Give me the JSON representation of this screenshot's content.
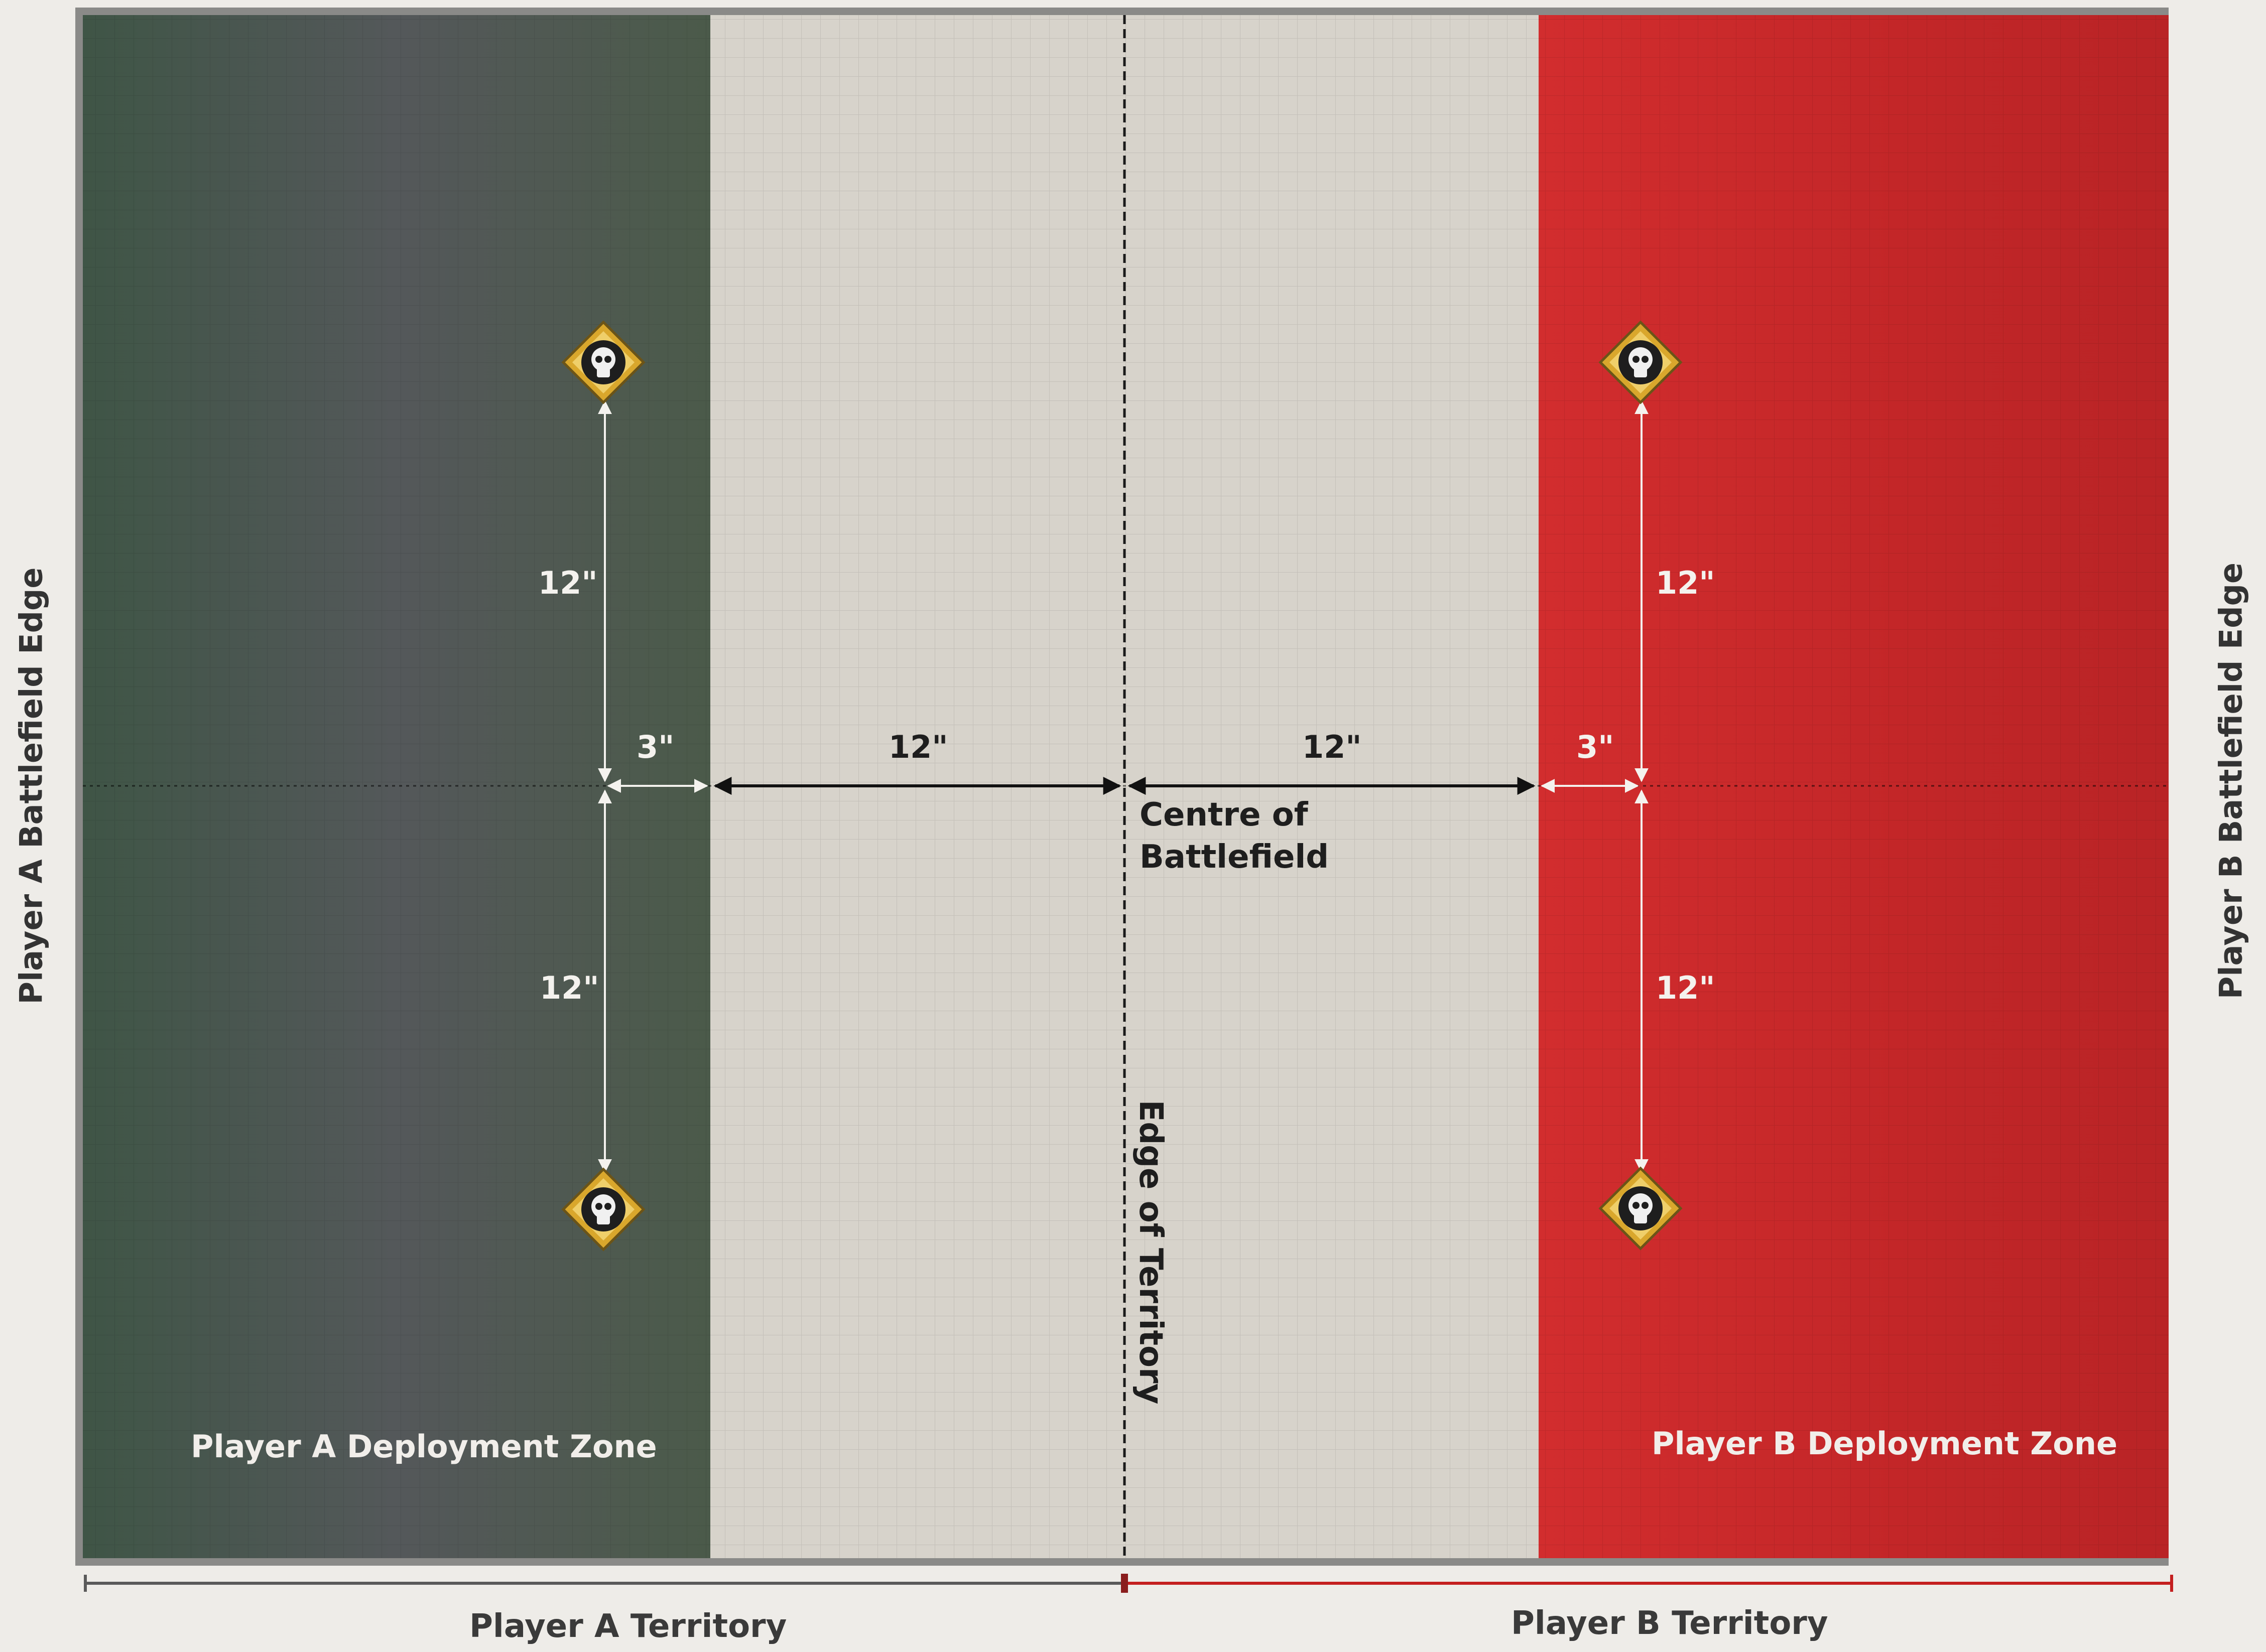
{
  "battlefield": {
    "left_edge": "Player A Battlefield Edge",
    "right_edge": "Player B Battlefield Edge",
    "zone_a": "Player A Deployment Zone",
    "zone_b": "Player B Deployment Zone",
    "centre_line1": "Centre of",
    "centre_line2": "Battlefield",
    "territory_edge": "Edge of Territory",
    "territory_a": "Player A Territory",
    "territory_b": "Player B Territory"
  },
  "measurements": {
    "a_top": "12\"",
    "a_bottom": "12\"",
    "a_side": "3\"",
    "mid_left": "12\"",
    "mid_right": "12\"",
    "b_side": "3\"",
    "b_top": "12\"",
    "b_bottom": "12\""
  },
  "objectives": {
    "icon": "skull-objective-icon",
    "count": 4
  },
  "colors": {
    "zone_a": "#4c5a4c",
    "no_mans_land": "#d6d2ca",
    "zone_b": "#c72b2c",
    "territory_a_line": "#5a5a5a",
    "territory_b_line": "#c41f1f",
    "objective_gold": "#d9a72c"
  }
}
